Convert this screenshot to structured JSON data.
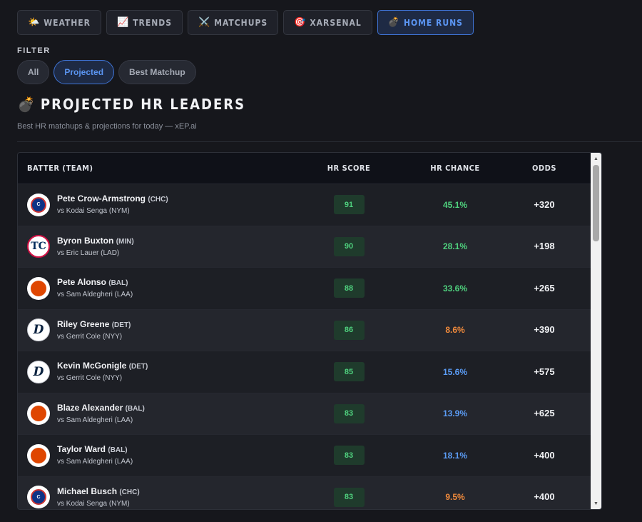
{
  "tabs": [
    {
      "icon": "🌤️",
      "label": "WEATHER",
      "active": false
    },
    {
      "icon": "📈",
      "label": "TRENDS",
      "active": false
    },
    {
      "icon": "⚔️",
      "label": "MATCHUPS",
      "active": false
    },
    {
      "icon": "🎯",
      "label": "XARSENAL",
      "active": false
    },
    {
      "icon": "💣",
      "label": "HOME RUNS",
      "active": true
    }
  ],
  "filter": {
    "label": "FILTER",
    "options": [
      "All",
      "Projected",
      "Best Matchup"
    ],
    "selected": "Projected"
  },
  "section": {
    "icon": "💣",
    "title": "PROJECTED HR LEADERS",
    "subtitle": "Best HR matchups & projections for today — xEP.ai"
  },
  "table": {
    "headers": {
      "batter": "BATTER (TEAM)",
      "score": "HR SCORE",
      "chance": "HR CHANCE",
      "odds": "ODDS"
    },
    "rows": [
      {
        "name": "Pete Crow-Armstrong",
        "team": "(CHC)",
        "logo": "chc",
        "logo_text": "C",
        "opponent": "vs Kodai Senga (NYM)",
        "score": "91",
        "chance": "45.1%",
        "chance_level": "high",
        "odds": "+320"
      },
      {
        "name": "Byron Buxton",
        "team": "(MIN)",
        "logo": "min",
        "logo_text": "TC",
        "opponent": "vs Eric Lauer (LAD)",
        "score": "90",
        "chance": "28.1%",
        "chance_level": "high",
        "odds": "+198"
      },
      {
        "name": "Pete Alonso",
        "team": "(BAL)",
        "logo": "bal",
        "logo_text": "",
        "opponent": "vs Sam Aldegheri (LAA)",
        "score": "88",
        "chance": "33.6%",
        "chance_level": "high",
        "odds": "+265"
      },
      {
        "name": "Riley Greene",
        "team": "(DET)",
        "logo": "det",
        "logo_text": "D",
        "opponent": "vs Gerrit Cole (NYY)",
        "score": "86",
        "chance": "8.6%",
        "chance_level": "low",
        "odds": "+390"
      },
      {
        "name": "Kevin McGonigle",
        "team": "(DET)",
        "logo": "det",
        "logo_text": "D",
        "opponent": "vs Gerrit Cole (NYY)",
        "score": "85",
        "chance": "15.6%",
        "chance_level": "mid",
        "odds": "+575"
      },
      {
        "name": "Blaze Alexander",
        "team": "(BAL)",
        "logo": "bal",
        "logo_text": "",
        "opponent": "vs Sam Aldegheri (LAA)",
        "score": "83",
        "chance": "13.9%",
        "chance_level": "mid",
        "odds": "+625"
      },
      {
        "name": "Taylor Ward",
        "team": "(BAL)",
        "logo": "bal",
        "logo_text": "",
        "opponent": "vs Sam Aldegheri (LAA)",
        "score": "83",
        "chance": "18.1%",
        "chance_level": "mid",
        "odds": "+400"
      },
      {
        "name": "Michael Busch",
        "team": "(CHC)",
        "logo": "chc",
        "logo_text": "C",
        "opponent": "vs Kodai Senga (NYM)",
        "score": "83",
        "chance": "9.5%",
        "chance_level": "low",
        "odds": "+400"
      }
    ]
  },
  "colors": {
    "high": "#4fd17e",
    "mid": "#5b9cf5",
    "low": "#f08a3c",
    "accent": "#3f74d6"
  },
  "scrollbar": {
    "visible": true
  }
}
